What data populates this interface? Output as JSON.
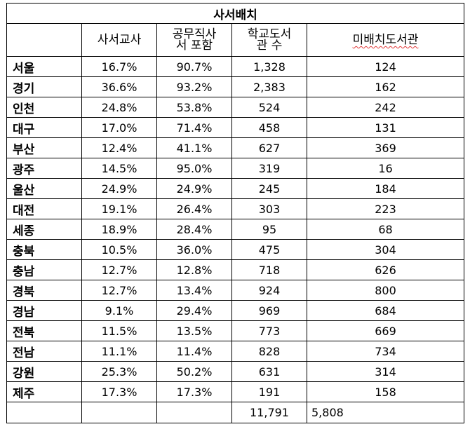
{
  "table": {
    "title": "사서배치",
    "headers": {
      "librarian_teacher": "사서교사",
      "civil_servant_line1": "공무직사",
      "civil_servant_line2": "서 포함",
      "school_libraries_line1": "학교도서",
      "school_libraries_line2": "관 수",
      "unstaffed_libraries": "미배치도서관"
    },
    "rows": [
      {
        "region": "서울",
        "librarian_teacher": "16.7%",
        "incl_civil_servant": "90.7%",
        "school_libraries": "1,328",
        "unstaffed": "124"
      },
      {
        "region": "경기",
        "librarian_teacher": "36.6%",
        "incl_civil_servant": "93.2%",
        "school_libraries": "2,383",
        "unstaffed": "162"
      },
      {
        "region": "인천",
        "librarian_teacher": "24.8%",
        "incl_civil_servant": "53.8%",
        "school_libraries": "524",
        "unstaffed": "242"
      },
      {
        "region": "대구",
        "librarian_teacher": "17.0%",
        "incl_civil_servant": "71.4%",
        "school_libraries": "458",
        "unstaffed": "131"
      },
      {
        "region": "부산",
        "librarian_teacher": "12.4%",
        "incl_civil_servant": "41.1%",
        "school_libraries": "627",
        "unstaffed": "369"
      },
      {
        "region": "광주",
        "librarian_teacher": "14.5%",
        "incl_civil_servant": "95.0%",
        "school_libraries": "319",
        "unstaffed": "16"
      },
      {
        "region": "울산",
        "librarian_teacher": "24.9%",
        "incl_civil_servant": "24.9%",
        "school_libraries": "245",
        "unstaffed": "184"
      },
      {
        "region": "대전",
        "librarian_teacher": "19.1%",
        "incl_civil_servant": "26.4%",
        "school_libraries": "303",
        "unstaffed": "223"
      },
      {
        "region": "세종",
        "librarian_teacher": "18.9%",
        "incl_civil_servant": "28.4%",
        "school_libraries": "95",
        "unstaffed": "68"
      },
      {
        "region": "충북",
        "librarian_teacher": "10.5%",
        "incl_civil_servant": "36.0%",
        "school_libraries": "475",
        "unstaffed": "304"
      },
      {
        "region": "충남",
        "librarian_teacher": "12.7%",
        "incl_civil_servant": "12.8%",
        "school_libraries": "718",
        "unstaffed": "626"
      },
      {
        "region": "경북",
        "librarian_teacher": "12.7%",
        "incl_civil_servant": "13.4%",
        "school_libraries": "924",
        "unstaffed": "800"
      },
      {
        "region": "경남",
        "librarian_teacher": "9.1%",
        "incl_civil_servant": "29.4%",
        "school_libraries": "969",
        "unstaffed": "684"
      },
      {
        "region": "전북",
        "librarian_teacher": "11.5%",
        "incl_civil_servant": "13.5%",
        "school_libraries": "773",
        "unstaffed": "669"
      },
      {
        "region": "전남",
        "librarian_teacher": "11.1%",
        "incl_civil_servant": "11.4%",
        "school_libraries": "828",
        "unstaffed": "734"
      },
      {
        "region": "강원",
        "librarian_teacher": "25.3%",
        "incl_civil_servant": "50.2%",
        "school_libraries": "631",
        "unstaffed": "314"
      },
      {
        "region": "제주",
        "librarian_teacher": "17.3%",
        "incl_civil_servant": "17.3%",
        "school_libraries": "191",
        "unstaffed": "158"
      }
    ],
    "totals": {
      "school_libraries": "11,791",
      "unstaffed": "5,808"
    },
    "spellcheck_underline_color": "#e23a3a"
  }
}
